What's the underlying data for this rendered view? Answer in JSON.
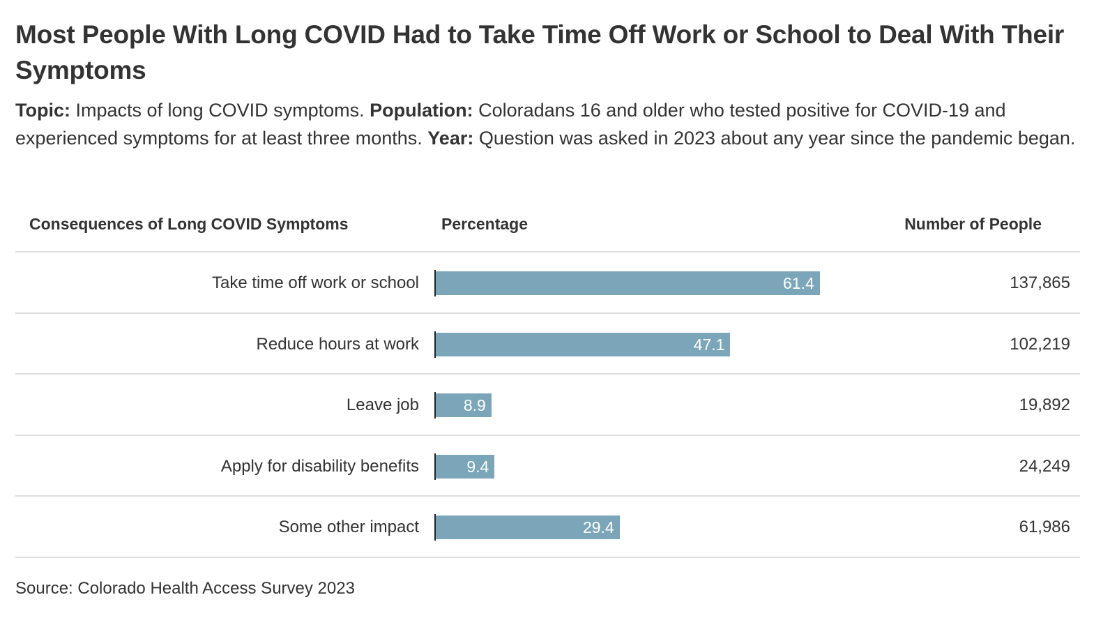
{
  "title": "Most People With Long COVID Had to Take Time Off Work or School to Deal With Their Symptoms",
  "subtitle": {
    "topic_label": "Topic:",
    "topic_text": " Impacts of long COVID symptoms. ",
    "population_label": "Population:",
    "population_text": " Coloradans 16 and older who tested positive for COVID-19 and experienced symptoms for at least three months. ",
    "year_label": "Year:",
    "year_text": " Question was asked in 2023 about any year since the pandemic began."
  },
  "columns": {
    "category": "Consequences of Long COVID Symptoms",
    "percentage": "Percentage",
    "number": "Number of People"
  },
  "chart_data": {
    "type": "table",
    "title": "Most People With Long COVID Had to Take Time Off Work or School to Deal With Their Symptoms",
    "categories": [
      "Take time off work or school",
      "Reduce hours at work",
      "Leave job",
      "Apply for disability benefits",
      "Some other impact"
    ],
    "series": [
      {
        "name": "Percentage",
        "values": [
          61.4,
          47.1,
          8.9,
          9.4,
          29.4
        ]
      },
      {
        "name": "Number of People",
        "values": [
          "137,865",
          "102,219",
          "19,892",
          "24,249",
          "61,986"
        ]
      }
    ],
    "xlim": [
      0,
      100
    ],
    "bar_color": "#7ba6b9"
  },
  "source": "Source: Colorado Health Access Survey 2023"
}
